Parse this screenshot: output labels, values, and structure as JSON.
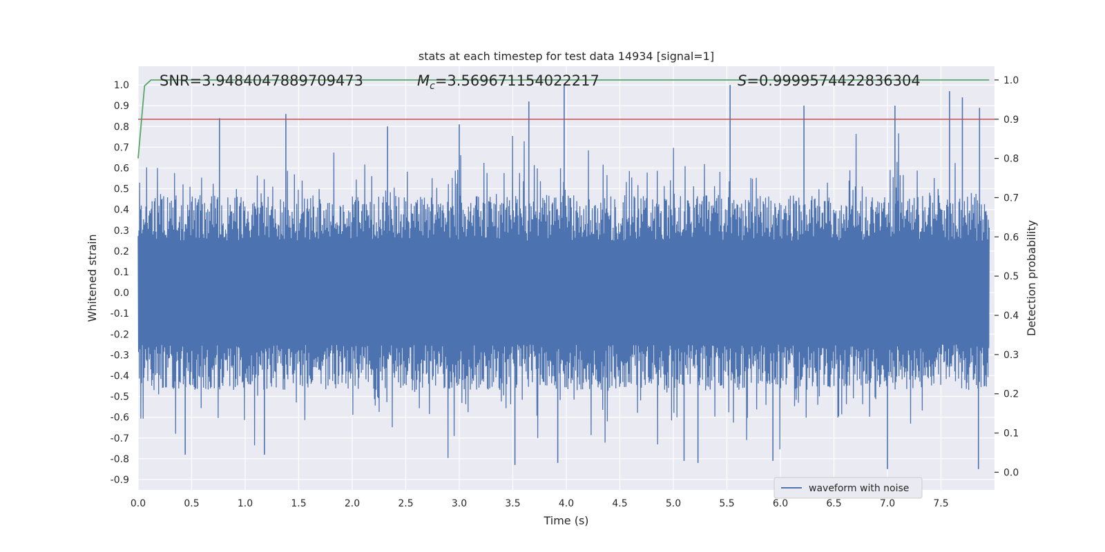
{
  "chart_data": {
    "type": "line",
    "title": "stats at each timestep for test data 14934 [signal=1]",
    "xlabel": "Time (s)",
    "ylabel": "Whitened strain",
    "ylabel_right": "Detection probability",
    "xlim": [
      0.0,
      8.0
    ],
    "ylim": [
      -0.95,
      1.09
    ],
    "ylim_right": [
      -0.045,
      1.035
    ],
    "x_ticks": [
      "0.0",
      "0.5",
      "1.0",
      "1.5",
      "2.0",
      "2.5",
      "3.0",
      "3.5",
      "4.0",
      "4.5",
      "5.0",
      "5.5",
      "6.0",
      "6.5",
      "7.0",
      "7.5"
    ],
    "y_ticks": [
      "1.0",
      "0.9",
      "0.8",
      "0.7",
      "0.6",
      "0.5",
      "0.4",
      "0.3",
      "0.2",
      "0.1",
      "0.0",
      "-0.1",
      "-0.2",
      "-0.3",
      "-0.4",
      "-0.5",
      "-0.6",
      "-0.7",
      "-0.8",
      "-0.9"
    ],
    "y_ticks_right": [
      "1.0",
      "0.9",
      "0.8",
      "0.7",
      "0.6",
      "0.5",
      "0.4",
      "0.3",
      "0.2",
      "0.1",
      "0.0"
    ],
    "grid": true,
    "legend_position": "lower-right",
    "colors": {
      "background": "#eaeaf2",
      "grid": "#ffffff",
      "waveform": "#4c72b0",
      "threshold": "#c44e52",
      "probability": "#55a868"
    },
    "annotations": {
      "snr_label": "SNR=3.9484047889709473",
      "mc_symbol": "M",
      "mc_subscript": "c",
      "mc_value": "=3.569671154022217",
      "s_symbol": "S",
      "s_value": "=0.9999574422836304"
    },
    "series": [
      {
        "name": "waveform with noise",
        "axis": "left",
        "sample_rate_hz": 2048,
        "envelope_upper_typical": 0.45,
        "envelope_lower_typical": -0.45,
        "peaks": [
          {
            "x": 0.76,
            "y": 0.84
          },
          {
            "x": 1.38,
            "y": 0.86
          },
          {
            "x": 3.65,
            "y": 0.92
          },
          {
            "x": 3.98,
            "y": 1.0
          },
          {
            "x": 5.53,
            "y": 1.0
          },
          {
            "x": 6.22,
            "y": 0.9
          },
          {
            "x": 7.07,
            "y": 0.9
          },
          {
            "x": 7.58,
            "y": 0.97
          },
          {
            "x": 7.7,
            "y": 0.94
          },
          {
            "x": 7.86,
            "y": 0.89
          },
          {
            "x": 2.33,
            "y": 0.8
          },
          {
            "x": 3.0,
            "y": 0.81
          }
        ],
        "troughs": [
          {
            "x": 0.44,
            "y": -0.78
          },
          {
            "x": 1.18,
            "y": -0.78
          },
          {
            "x": 3.52,
            "y": -0.83
          },
          {
            "x": 3.92,
            "y": -0.82
          },
          {
            "x": 5.1,
            "y": -0.81
          },
          {
            "x": 5.23,
            "y": -0.82
          },
          {
            "x": 5.93,
            "y": -0.81
          },
          {
            "x": 7.0,
            "y": -0.85
          },
          {
            "x": 7.85,
            "y": -0.85
          }
        ]
      },
      {
        "name": "",
        "axis": "right",
        "x": [
          0.0,
          0.06,
          0.12,
          0.2,
          1.0,
          2.0,
          3.0,
          4.0,
          5.0,
          6.0,
          7.0,
          7.95
        ],
        "values": [
          0.8,
          0.985,
          1.0,
          1.0,
          1.0,
          1.0,
          1.0,
          1.0,
          1.0,
          1.0,
          1.0,
          1.0
        ]
      },
      {
        "name": "",
        "axis": "right",
        "x": [
          0.0,
          8.0
        ],
        "values": [
          0.9,
          0.9
        ]
      }
    ]
  }
}
